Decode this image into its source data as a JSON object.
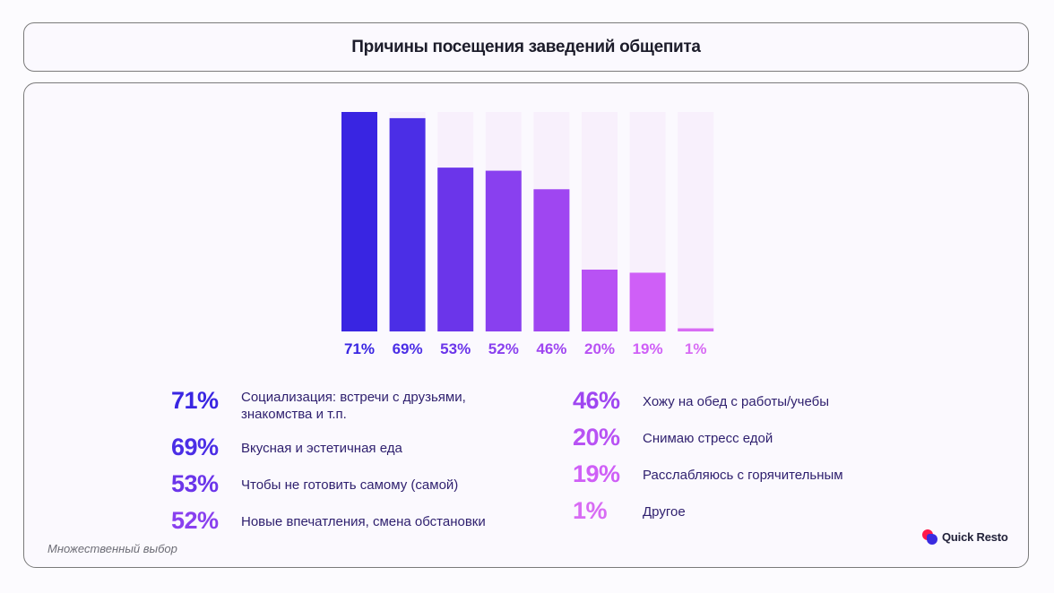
{
  "title": "Причины посещения заведений общепита",
  "footnote": "Множественный выбор",
  "logo": {
    "text": "Quick Resto",
    "colors": [
      "#ff1a4b",
      "#3a2be0"
    ]
  },
  "track_color": "#f8f0fc",
  "chart_data": {
    "type": "bar",
    "title": "Причины посещения заведений общепита",
    "categories": [
      "Социализация: встречи с друзьями, знакомства и т.п.",
      "Вкусная и эстетичная еда",
      "Чтобы не готовить самому (самой)",
      "Новые впечатления, смена обстановки",
      "Хожу на обед с работы/учебы",
      "Снимаю стресс едой",
      "Расслабляюсь с горячительным",
      "Другое"
    ],
    "values": [
      71,
      69,
      53,
      52,
      46,
      20,
      19,
      1
    ],
    "labels": [
      "71%",
      "69%",
      "53%",
      "52%",
      "46%",
      "20%",
      "19%",
      "1%"
    ],
    "colors": [
      "#3925e2",
      "#4b2ee6",
      "#6b35ea",
      "#8940ef",
      "#9f46f1",
      "#b852f4",
      "#cf5ff7",
      "#d86cf4"
    ],
    "unit": "%",
    "ylim": [
      0,
      71
    ],
    "xlabel": "",
    "ylabel": "",
    "grid": false,
    "legend": "bottom"
  },
  "legend": {
    "left": [
      {
        "pct": "71%",
        "text": "Социализация: встречи с друзьями,",
        "text2": "знакомства и т.п."
      },
      {
        "pct": "69%",
        "text": "Вкусная и эстетичная еда"
      },
      {
        "pct": "53%",
        "text": "Чтобы не готовить самому (самой)"
      },
      {
        "pct": "52%",
        "text": "Новые впечатления, смена обстановки"
      }
    ],
    "right": [
      {
        "pct": "46%",
        "text": "Хожу на обед с работы/учебы"
      },
      {
        "pct": "20%",
        "text": "Снимаю стресс едой"
      },
      {
        "pct": "19%",
        "text": "Расслабляюсь с горячительным"
      },
      {
        "pct": "1%",
        "text": "Другое"
      }
    ]
  }
}
